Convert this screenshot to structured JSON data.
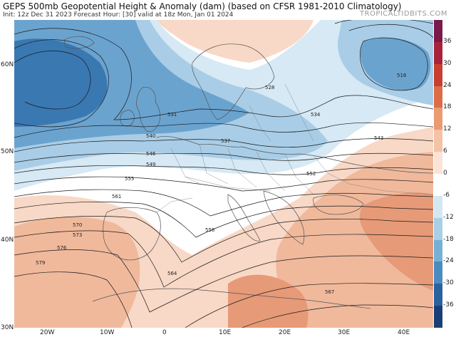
{
  "header": {
    "title": "GEPS 500mb Geopotential Height & Anomaly (dam) (based on CFSR 1981-2010 Climatology)",
    "subtitle": "Init: 12z Dec 31 2023   Forecast Hour: [30]   valid at 18z Mon, Jan 01 2024",
    "credit": "TROPICALTIDBITS.COM"
  },
  "axes": {
    "lat_labels": [
      "60N",
      "50N",
      "40N",
      "30N"
    ],
    "lon_labels": [
      "20W",
      "10W",
      "0",
      "10E",
      "20E",
      "30E",
      "40E"
    ]
  },
  "colorbar": {
    "ticks": [
      "36",
      "30",
      "24",
      "18",
      "12",
      "6",
      "0",
      "-6",
      "-12",
      "-18",
      "-24",
      "-30",
      "-36"
    ],
    "colors": [
      "#7a1a4a",
      "#a8233a",
      "#c73f30",
      "#dc6c45",
      "#eb9a72",
      "#f5c2a6",
      "#fbe3d5",
      "#ffffff",
      "#d4e8f2",
      "#a8cfe6",
      "#76b0d6",
      "#4a8cbf",
      "#2a62a0",
      "#1a3f78"
    ]
  },
  "contour_labels": [
    "516",
    "528",
    "531",
    "534",
    "537",
    "540",
    "543",
    "546",
    "549",
    "552",
    "555",
    "558",
    "561",
    "564",
    "567",
    "570",
    "573",
    "576",
    "579"
  ],
  "colors": {
    "neg_strong": "#3a78b2",
    "neg_mid": "#6ba3cf",
    "neg_light": "#a9cde6",
    "neg_pale": "#d6e9f4",
    "pos_pale": "#f8d8c6",
    "pos_light": "#f0b99c",
    "pos_mid": "#e69a78",
    "contour": "#1a1a1a",
    "border": "#555555"
  }
}
